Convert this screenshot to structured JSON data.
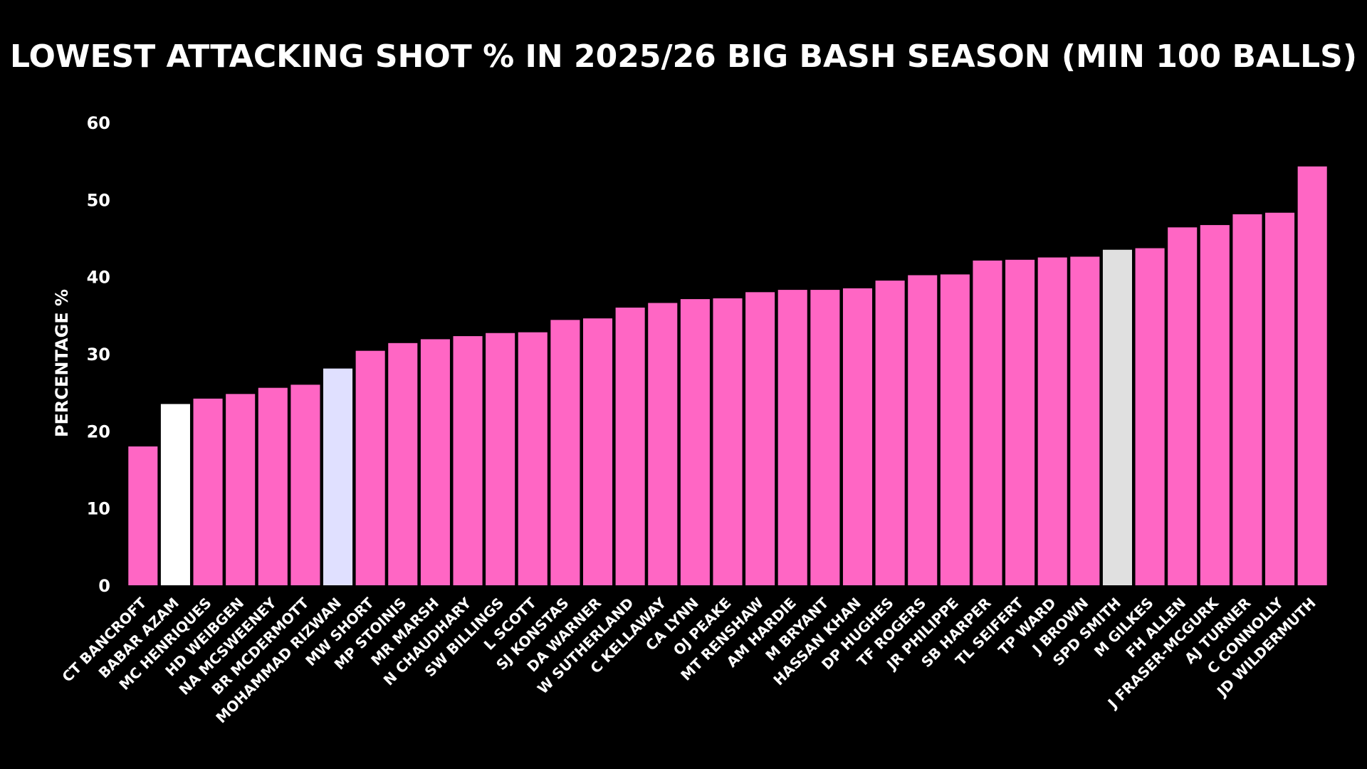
{
  "chart_data": {
    "type": "bar",
    "title": "LOWEST ATTACKING SHOT % IN 2025/26 BIG BASH SEASON (MIN 100 BALLS)",
    "xlabel": "",
    "ylabel": "PERCENTAGE %",
    "ylim": [
      0,
      60
    ],
    "yticks": [
      0,
      10,
      20,
      30,
      40,
      50,
      60
    ],
    "grid": false,
    "default_color": "#ff66c4",
    "categories": [
      "CT BANCROFT",
      "BABAR AZAM",
      "MC HENRIQUES",
      "HD WEIBGEN",
      "NA MCSWEENEY",
      "BR MCDERMOTT",
      "MOHAMMAD RIZWAN",
      "MW SHORT",
      "MP STOINIS",
      "MR MARSH",
      "N CHAUDHARY",
      "SW BILLINGS",
      "L SCOTT",
      "SJ KONSTAS",
      "DA WARNER",
      "W SUTHERLAND",
      "C KELLAWAY",
      "CA LYNN",
      "OJ PEAKE",
      "MT RENSHAW",
      "AM HARDIE",
      "M BRYANT",
      "HASSAN KHAN",
      "DP HUGHES",
      "TF ROGERS",
      "JR PHILIPPE",
      "SB HARPER",
      "TL SEIFERT",
      "TP WARD",
      "J BROWN",
      "SPD SMITH",
      "M GILKES",
      "FH ALLEN",
      "J FRASER-MCGURK",
      "AJ TURNER",
      "C CONNOLLY",
      "JD WILDERMUTH"
    ],
    "values": [
      18.0,
      23.5,
      24.2,
      24.8,
      25.6,
      26.0,
      28.1,
      30.4,
      31.4,
      31.9,
      32.3,
      32.7,
      32.8,
      34.4,
      34.6,
      36.0,
      36.6,
      37.1,
      37.2,
      38.0,
      38.3,
      38.3,
      38.5,
      39.5,
      40.2,
      40.3,
      42.1,
      42.2,
      42.5,
      42.6,
      43.5,
      43.7,
      46.4,
      46.7,
      48.1,
      48.3,
      54.3
    ],
    "colors": [
      "#ff66c4",
      "#ffffff",
      "#ff66c4",
      "#ff66c4",
      "#ff66c4",
      "#ff66c4",
      "#e0e0ff",
      "#ff66c4",
      "#ff66c4",
      "#ff66c4",
      "#ff66c4",
      "#ff66c4",
      "#ff66c4",
      "#ff66c4",
      "#ff66c4",
      "#ff66c4",
      "#ff66c4",
      "#ff66c4",
      "#ff66c4",
      "#ff66c4",
      "#ff66c4",
      "#ff66c4",
      "#ff66c4",
      "#ff66c4",
      "#ff66c4",
      "#ff66c4",
      "#ff66c4",
      "#ff66c4",
      "#ff66c4",
      "#ff66c4",
      "#e0e0e0",
      "#ff66c4",
      "#ff66c4",
      "#ff66c4",
      "#ff66c4",
      "#ff66c4",
      "#ff66c4"
    ]
  }
}
